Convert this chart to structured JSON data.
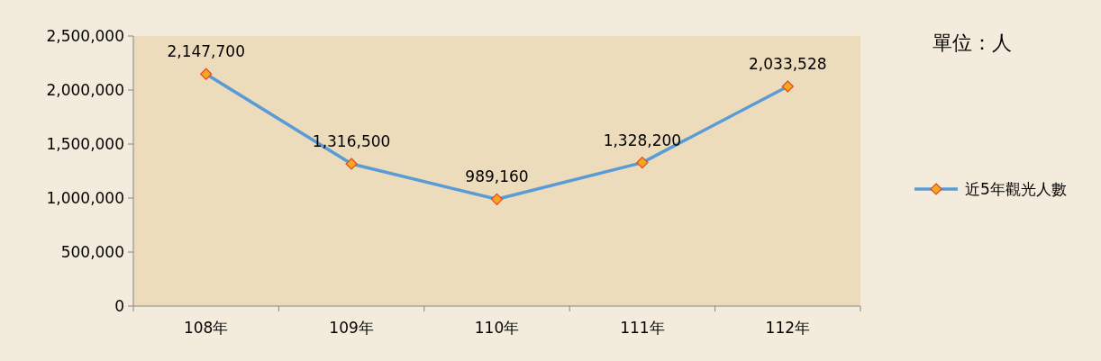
{
  "chart_data": {
    "type": "line",
    "categories": [
      "108年",
      "109年",
      "110年",
      "111年",
      "112年"
    ],
    "series": [
      {
        "name": "近5年觀光人數",
        "color": "#5b9bd5",
        "values": [
          2147700,
          1316500,
          989160,
          1328200,
          2033528
        ],
        "value_labels": [
          "2,147,700",
          "1,316,500",
          "989,160",
          "1,328,200",
          "2,033,528"
        ]
      }
    ],
    "ylim": [
      0,
      2500000
    ],
    "yticks": [
      0,
      {
        "value": 500000,
        "label": "500,000"
      },
      {
        "value": 1000000,
        "label": "1,000,000"
      },
      {
        "value": 1500000,
        "label": "1,500,000"
      },
      {
        "value": 2000000,
        "label": "2,000,000"
      },
      {
        "value": 2500000,
        "label": "2,500,000"
      }
    ],
    "marker": "diamond",
    "legend": "right",
    "annotations": [
      "單位：人"
    ]
  }
}
